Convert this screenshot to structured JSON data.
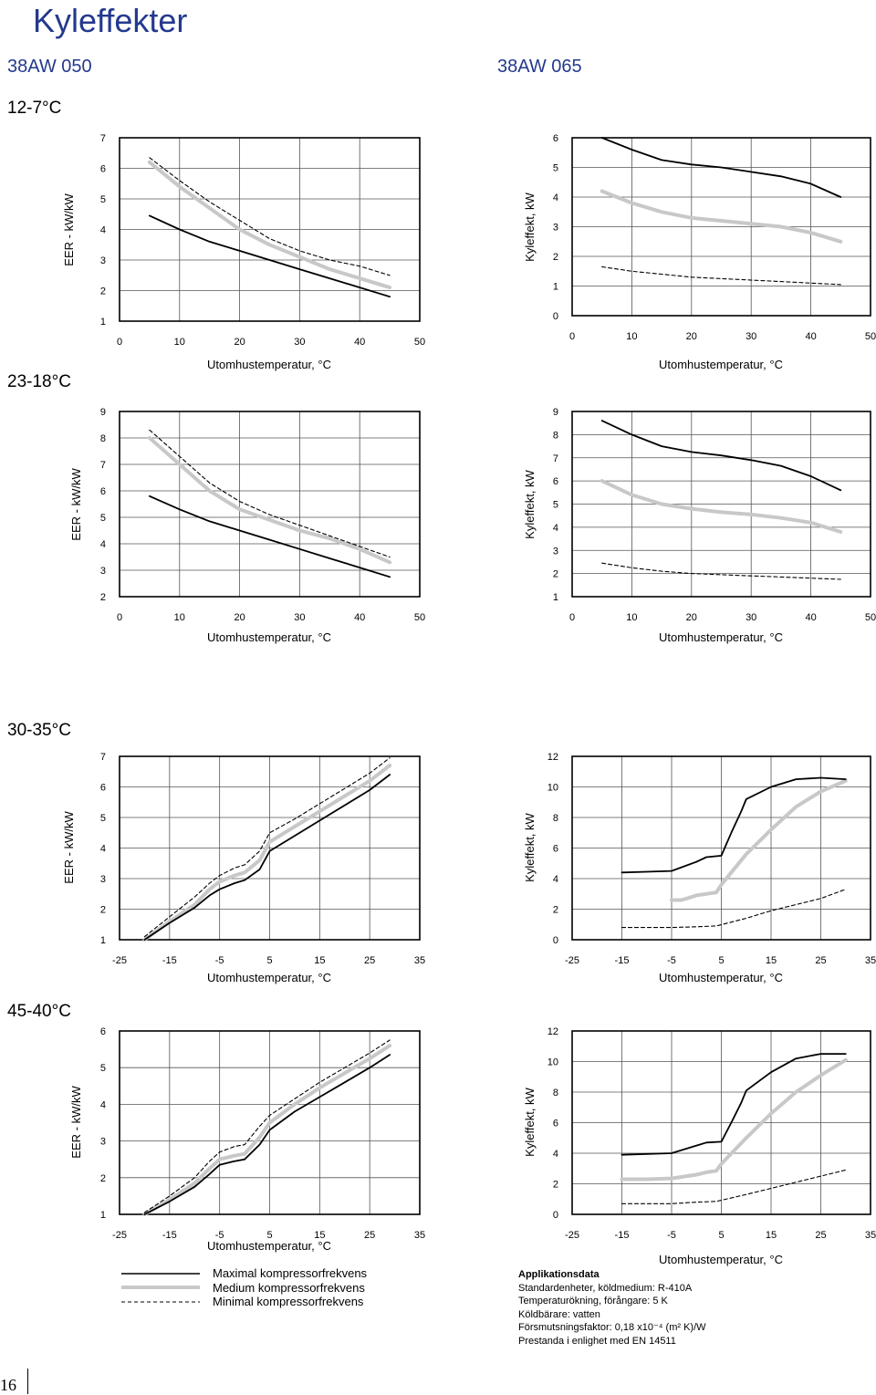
{
  "page_title": "Kyleffekter",
  "models": {
    "left": "38AW 050",
    "right": "38AW 065"
  },
  "sections": [
    "12-7°C",
    "23-18°C",
    "30-35°C",
    "45-40°C"
  ],
  "legend": {
    "items": [
      {
        "label": "Maximal kompressorfrekvens",
        "color": "#000000",
        "style": "solid"
      },
      {
        "label": "Medium kompressorfrekvens",
        "color": "#c8c8c8",
        "style": "solid-thick"
      },
      {
        "label": "Minimal kompressorfrekvens",
        "color": "#000000",
        "style": "dashed"
      }
    ]
  },
  "application_data": {
    "heading": "Applikationsdata",
    "lines": [
      "Standardenheter, köldmedium: R-410A",
      "Temperaturökning, förångare: 5 K",
      "Köldbärare: vatten",
      "Försmutsningsfaktor: 0,18 x10⁻⁴ (m² K)/W",
      "Prestanda i enlighet med EN 14511"
    ]
  },
  "page_number": "16",
  "chart_data": [
    {
      "type": "line",
      "xlabel": "Utomhustemperatur, °C",
      "ylabel": "EER - kW/kW",
      "xticks": [
        "0",
        "10",
        "20",
        "30",
        "40",
        "50"
      ],
      "yticks": [
        "1",
        "2",
        "3",
        "4",
        "5",
        "6",
        "7"
      ],
      "xlim": [
        0,
        50
      ],
      "ylim": [
        1,
        7
      ],
      "grid": true,
      "series": [
        {
          "name": "Maximal kompressorfrekvens",
          "x": [
            5,
            10,
            15,
            20,
            25,
            30,
            35,
            40,
            45
          ],
          "y": [
            4.45,
            4.0,
            3.6,
            3.3,
            3.0,
            2.7,
            2.4,
            2.1,
            1.8
          ]
        },
        {
          "name": "Medium kompressorfrekvens",
          "x": [
            5,
            10,
            15,
            20,
            25,
            30,
            35,
            40,
            45
          ],
          "y": [
            6.2,
            5.4,
            4.7,
            4.0,
            3.5,
            3.1,
            2.7,
            2.4,
            2.1
          ]
        },
        {
          "name": "Minimal kompressorfrekvens",
          "x": [
            5,
            10,
            15,
            20,
            25,
            30,
            35,
            40,
            45
          ],
          "y": [
            6.35,
            5.6,
            4.9,
            4.3,
            3.7,
            3.3,
            3.0,
            2.8,
            2.5
          ]
        }
      ]
    },
    {
      "type": "line",
      "xlabel": "Utomhustemperatur, °C",
      "ylabel": "Kyleffekt, kW",
      "xticks": [
        "0",
        "10",
        "20",
        "30",
        "40",
        "50"
      ],
      "yticks": [
        "0",
        "1",
        "2",
        "3",
        "4",
        "5",
        "6"
      ],
      "xlim": [
        0,
        50
      ],
      "ylim": [
        0,
        6
      ],
      "grid": true,
      "series": [
        {
          "name": "Maximal kompressorfrekvens",
          "x": [
            5,
            10,
            15,
            20,
            25,
            30,
            35,
            40,
            45
          ],
          "y": [
            6.0,
            5.6,
            5.25,
            5.1,
            5.0,
            4.85,
            4.7,
            4.45,
            4.0
          ]
        },
        {
          "name": "Medium kompressorfrekvens",
          "x": [
            5,
            10,
            15,
            20,
            25,
            30,
            35,
            40,
            45
          ],
          "y": [
            4.2,
            3.8,
            3.5,
            3.3,
            3.2,
            3.1,
            3.0,
            2.8,
            2.5
          ]
        },
        {
          "name": "Minimal kompressorfrekvens",
          "x": [
            5,
            10,
            15,
            20,
            25,
            30,
            35,
            40,
            45
          ],
          "y": [
            1.65,
            1.5,
            1.4,
            1.3,
            1.25,
            1.2,
            1.15,
            1.1,
            1.05
          ]
        }
      ]
    },
    {
      "type": "line",
      "xlabel": "Utomhustemperatur, °C",
      "ylabel": "EER - kW/kW",
      "xticks": [
        "0",
        "10",
        "20",
        "30",
        "40",
        "50"
      ],
      "yticks": [
        "2",
        "3",
        "4",
        "5",
        "6",
        "7",
        "8",
        "9"
      ],
      "xlim": [
        0,
        50
      ],
      "ylim": [
        2,
        9
      ],
      "grid": true,
      "series": [
        {
          "name": "Maximal kompressorfrekvens",
          "x": [
            5,
            10,
            15,
            20,
            25,
            30,
            35,
            40,
            45
          ],
          "y": [
            5.8,
            5.3,
            4.85,
            4.5,
            4.15,
            3.8,
            3.45,
            3.1,
            2.75
          ]
        },
        {
          "name": "Medium kompressorfrekvens",
          "x": [
            5,
            10,
            15,
            20,
            25,
            30,
            35,
            40,
            45
          ],
          "y": [
            8.0,
            7.0,
            6.0,
            5.3,
            4.9,
            4.5,
            4.2,
            3.8,
            3.3
          ]
        },
        {
          "name": "Minimal kompressorfrekvens",
          "x": [
            5,
            10,
            15,
            20,
            25,
            30,
            35,
            40,
            45
          ],
          "y": [
            8.3,
            7.3,
            6.3,
            5.6,
            5.1,
            4.7,
            4.3,
            3.9,
            3.5
          ]
        }
      ]
    },
    {
      "type": "line",
      "xlabel": "Utomhustemperatur, °C",
      "ylabel": "Kyleffekt, kW",
      "xticks": [
        "0",
        "10",
        "20",
        "30",
        "40",
        "50"
      ],
      "yticks": [
        "1",
        "2",
        "3",
        "4",
        "5",
        "6",
        "7",
        "8",
        "9"
      ],
      "xlim": [
        0,
        50
      ],
      "ylim": [
        1,
        9
      ],
      "grid": true,
      "series": [
        {
          "name": "Maximal kompressorfrekvens",
          "x": [
            5,
            10,
            15,
            20,
            25,
            30,
            35,
            40,
            45
          ],
          "y": [
            8.6,
            8.0,
            7.5,
            7.25,
            7.1,
            6.9,
            6.65,
            6.2,
            5.6
          ]
        },
        {
          "name": "Medium kompressorfrekvens",
          "x": [
            5,
            10,
            15,
            20,
            25,
            30,
            35,
            40,
            45
          ],
          "y": [
            6.0,
            5.4,
            5.0,
            4.8,
            4.65,
            4.55,
            4.4,
            4.2,
            3.8
          ]
        },
        {
          "name": "Minimal kompressorfrekvens",
          "x": [
            5,
            10,
            15,
            20,
            25,
            30,
            35,
            40,
            45
          ],
          "y": [
            2.45,
            2.25,
            2.1,
            2.0,
            1.95,
            1.9,
            1.85,
            1.8,
            1.75
          ]
        }
      ]
    },
    {
      "type": "line",
      "xlabel": "Utomhustemperatur, °C",
      "ylabel": "EER - kW/kW",
      "xticks": [
        "-25",
        "-15",
        "-5",
        "5",
        "15",
        "25",
        "35"
      ],
      "yticks": [
        "1",
        "2",
        "3",
        "4",
        "5",
        "6",
        "7"
      ],
      "xlim": [
        -25,
        35
      ],
      "ylim": [
        1,
        7
      ],
      "grid": true,
      "series": [
        {
          "name": "Maximal kompressorfrekvens",
          "x": [
            -20,
            -15,
            -10,
            -7,
            -5,
            -2,
            0,
            3,
            5,
            10,
            15,
            20,
            25,
            29
          ],
          "y": [
            1.0,
            1.55,
            2.05,
            2.45,
            2.65,
            2.85,
            2.95,
            3.3,
            3.9,
            4.4,
            4.9,
            5.4,
            5.9,
            6.4
          ]
        },
        {
          "name": "Medium kompressorfrekvens",
          "x": [
            -20,
            -15,
            -10,
            -7,
            -5,
            -2,
            0,
            3,
            5,
            10,
            15,
            20,
            25,
            29
          ],
          "y": [
            1.0,
            1.6,
            2.15,
            2.65,
            2.9,
            3.1,
            3.2,
            3.6,
            4.2,
            4.7,
            5.2,
            5.7,
            6.2,
            6.7
          ]
        },
        {
          "name": "Minimal kompressorfrekvens",
          "x": [
            -20,
            -15,
            -10,
            -7,
            -5,
            -2,
            0,
            3,
            5,
            10,
            15,
            20,
            25,
            29
          ],
          "y": [
            1.1,
            1.75,
            2.4,
            2.85,
            3.1,
            3.35,
            3.45,
            3.9,
            4.5,
            4.95,
            5.45,
            5.95,
            6.45,
            6.95
          ]
        }
      ]
    },
    {
      "type": "line",
      "xlabel": "Utomhustemperatur, °C",
      "ylabel": "Kyleffekt, kW",
      "xticks": [
        "-25",
        "-15",
        "-5",
        "5",
        "15",
        "25",
        "35"
      ],
      "yticks": [
        "0",
        "2",
        "4",
        "6",
        "8",
        "10",
        "12"
      ],
      "xlim": [
        -25,
        35
      ],
      "ylim": [
        0,
        12
      ],
      "grid": true,
      "series": [
        {
          "name": "Maximal kompressorfrekvens",
          "x": [
            -15,
            -10,
            -5,
            0,
            2,
            5,
            7,
            9,
            10,
            15,
            20,
            25,
            30
          ],
          "y": [
            4.4,
            4.45,
            4.5,
            5.1,
            5.4,
            5.5,
            7.0,
            8.4,
            9.2,
            10.0,
            10.5,
            10.6,
            10.5
          ]
        },
        {
          "name": "Medium kompressorfrekvens",
          "x": [
            -5,
            -3,
            0,
            2,
            4,
            5,
            10,
            15,
            20,
            25,
            30
          ],
          "y": [
            2.6,
            2.6,
            2.9,
            3.0,
            3.1,
            3.6,
            5.6,
            7.2,
            8.7,
            9.7,
            10.4
          ]
        },
        {
          "name": "Minimal kompressorfrekvens",
          "x": [
            -15,
            -10,
            -5,
            0,
            4,
            10,
            15,
            20,
            25,
            30
          ],
          "y": [
            0.8,
            0.8,
            0.8,
            0.85,
            0.9,
            1.4,
            1.9,
            2.3,
            2.7,
            3.3
          ]
        }
      ]
    },
    {
      "type": "line",
      "xlabel": "Utomhustemperatur, °C",
      "ylabel": "EER - kW/kW",
      "xticks": [
        "-25",
        "-15",
        "-5",
        "5",
        "15",
        "25",
        "35"
      ],
      "yticks": [
        "1",
        "2",
        "3",
        "4",
        "5",
        "6"
      ],
      "xlim": [
        -25,
        35
      ],
      "ylim": [
        1,
        6
      ],
      "grid": true,
      "series": [
        {
          "name": "Maximal kompressorfrekvens",
          "x": [
            -20,
            -15,
            -10,
            -7,
            -5,
            -2,
            0,
            3,
            5,
            10,
            15,
            20,
            25,
            29
          ],
          "y": [
            1.0,
            1.35,
            1.75,
            2.1,
            2.35,
            2.45,
            2.5,
            2.9,
            3.3,
            3.8,
            4.2,
            4.6,
            5.0,
            5.35
          ]
        },
        {
          "name": "Medium kompressorfrekvens",
          "x": [
            -20,
            -15,
            -10,
            -7,
            -5,
            -2,
            0,
            3,
            5,
            10,
            15,
            20,
            25,
            29
          ],
          "y": [
            1.0,
            1.4,
            1.85,
            2.25,
            2.5,
            2.6,
            2.65,
            3.1,
            3.5,
            4.0,
            4.45,
            4.85,
            5.25,
            5.6
          ]
        },
        {
          "name": "Minimal kompressorfrekvens",
          "x": [
            -20,
            -15,
            -10,
            -7,
            -5,
            -2,
            0,
            3,
            5,
            10,
            15,
            20,
            25,
            29
          ],
          "y": [
            1.05,
            1.5,
            2.0,
            2.45,
            2.7,
            2.85,
            2.9,
            3.4,
            3.7,
            4.15,
            4.6,
            5.0,
            5.4,
            5.75
          ]
        }
      ]
    },
    {
      "type": "line",
      "xlabel": "Utomhustemperatur, °C",
      "ylabel": "Kyleffekt, kW",
      "xticks": [
        "-25",
        "-15",
        "-5",
        "5",
        "15",
        "25",
        "35"
      ],
      "yticks": [
        "0",
        "2",
        "4",
        "6",
        "8",
        "10",
        "12"
      ],
      "xlim": [
        -25,
        35
      ],
      "ylim": [
        0,
        12
      ],
      "grid": true,
      "series": [
        {
          "name": "Maximal kompressorfrekvens",
          "x": [
            -15,
            -10,
            -5,
            0,
            2,
            5,
            7,
            9,
            10,
            15,
            20,
            25,
            30
          ],
          "y": [
            3.9,
            3.95,
            4.0,
            4.5,
            4.7,
            4.75,
            6.0,
            7.3,
            8.1,
            9.3,
            10.2,
            10.5,
            10.5
          ]
        },
        {
          "name": "Medium kompressorfrekvens",
          "x": [
            -15,
            -10,
            -5,
            0,
            2,
            4,
            5,
            10,
            15,
            20,
            25,
            30
          ],
          "y": [
            2.3,
            2.3,
            2.35,
            2.6,
            2.75,
            2.85,
            3.3,
            5.0,
            6.6,
            8.0,
            9.1,
            10.1
          ]
        },
        {
          "name": "Minimal kompressorfrekvens",
          "x": [
            -15,
            -10,
            -5,
            0,
            4,
            10,
            15,
            20,
            25,
            30
          ],
          "y": [
            0.7,
            0.7,
            0.7,
            0.8,
            0.85,
            1.3,
            1.7,
            2.1,
            2.5,
            2.9
          ]
        }
      ]
    }
  ]
}
